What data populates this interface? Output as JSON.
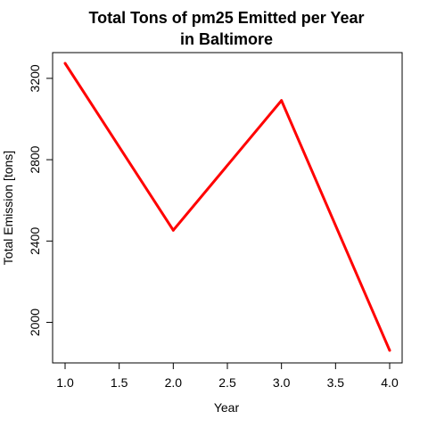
{
  "chart_data": {
    "type": "line",
    "title_line1": "Total Tons of pm25 Emitted per Year",
    "title_line2": "in Baltimore",
    "xlabel": "Year",
    "ylabel": "Total Emission [tons]",
    "x": [
      1.0,
      2.0,
      3.0,
      4.0
    ],
    "y": [
      3274,
      2453,
      3091,
      1862
    ],
    "xlim": [
      1.0,
      4.0
    ],
    "ylim": [
      1862,
      3274
    ],
    "xticks": [
      "1.0",
      "1.5",
      "2.0",
      "2.5",
      "3.0",
      "3.5",
      "4.0"
    ],
    "yticks": [
      "2000",
      "2400",
      "2800",
      "3200"
    ],
    "line_color": "#ff0000",
    "grid": false
  }
}
